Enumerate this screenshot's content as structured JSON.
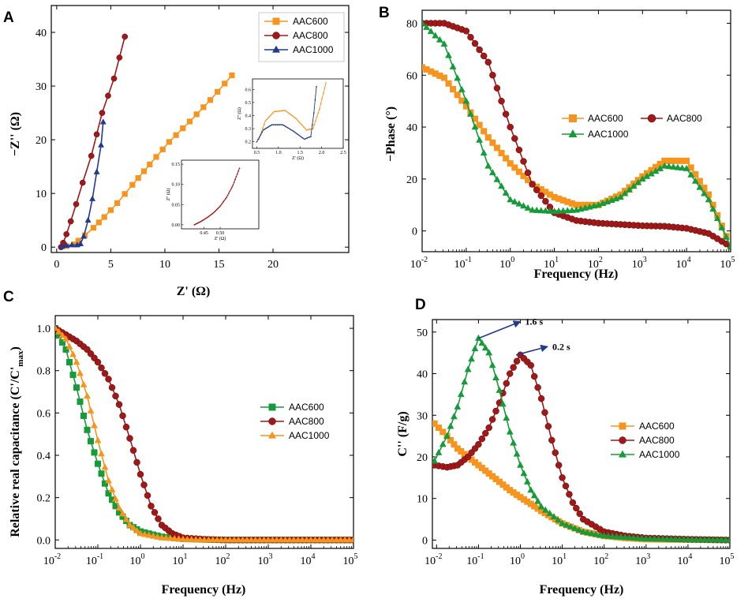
{
  "colors": {
    "AAC600_A": "#F7941D",
    "AAC800_A": "#A01818",
    "AAC1000_A": "#1F2F8F",
    "orange": "#F7941D",
    "darkred": "#A01818",
    "green": "#169B3A",
    "navy": "#1F3A8F"
  },
  "chart_data": [
    {
      "id": "A",
      "panel_letter": "A",
      "type": "line",
      "xlabel": "Z' (Ω)",
      "xlabel_main": "Z'",
      "xlabel_unit": "(Ω)",
      "ylabel": "−Z'' (Ω)",
      "ylabel_main": "−Z''",
      "ylabel_unit": "(Ω)",
      "xlim": [
        -0.5,
        27
      ],
      "ylim": [
        -1,
        45
      ],
      "xticks": [
        0,
        5,
        10,
        15,
        20
      ],
      "yticks": [
        0,
        10,
        20,
        30,
        40
      ],
      "legend_position": "top-right",
      "series": [
        {
          "name": "AAC600",
          "color_key": "orange",
          "marker": "square",
          "x": [
            0.9,
            1.6,
            2.0,
            2.6,
            3.4,
            4.4,
            5.6,
            7.0,
            8.6,
            10.4,
            12.3,
            14.2,
            16.2
          ],
          "y": [
            0.2,
            0.5,
            1.2,
            2.2,
            3.6,
            5.6,
            8.2,
            11.6,
            15.4,
            19.6,
            23.4,
            27.4,
            32.0
          ]
        },
        {
          "name": "AAC800",
          "color_key": "darkred",
          "marker": "circle",
          "x": [
            0.4,
            0.6,
            0.9,
            1.3,
            1.8,
            2.4,
            3.2,
            4.2,
            5.3,
            6.3
          ],
          "y": [
            0.0,
            0.8,
            2.4,
            4.8,
            8.0,
            12.0,
            17.0,
            25.0,
            31.4,
            39.2
          ]
        },
        {
          "name": "AAC1000",
          "color_key": "navy",
          "marker": "triangle",
          "x": [
            0.5,
            0.9,
            1.4,
            1.9,
            2.2,
            2.5,
            2.9,
            3.3,
            3.7,
            4.1,
            4.3
          ],
          "y": [
            0.1,
            0.3,
            0.4,
            0.4,
            0.6,
            2.0,
            5.0,
            9.0,
            14.0,
            19.0,
            23.3
          ]
        }
      ],
      "insets": [
        {
          "id": "inset1",
          "xlabel": "Z' (Ω)",
          "ylabel": "Z'' (Ω)",
          "xlim": [
            0.4,
            2.5
          ],
          "ylim": [
            0.15,
            0.68
          ],
          "xticks": [
            0.5,
            1.0,
            1.5,
            2.0,
            2.5
          ],
          "xtick_labels": [
            "0.5",
            "1.0",
            "1.5",
            "2.0",
            "2.5"
          ],
          "yticks": [
            0.2,
            0.3,
            0.4,
            0.5,
            0.6
          ],
          "ytick_labels": [
            "0.2",
            "0.3",
            "0.4",
            "0.5",
            "0.6"
          ],
          "series": [
            {
              "name": "AAC600",
              "color_key": "orange",
              "x": [
                0.55,
                0.7,
                0.9,
                1.15,
                1.4,
                1.65,
                1.8,
                1.95,
                2.1
              ],
              "y": [
                0.22,
                0.36,
                0.43,
                0.44,
                0.38,
                0.29,
                0.3,
                0.45,
                0.65
              ]
            },
            {
              "name": "AAC1000",
              "color_key": "navy",
              "x": [
                0.5,
                0.65,
                0.85,
                1.1,
                1.35,
                1.6,
                1.75,
                1.82,
                1.88
              ],
              "y": [
                0.2,
                0.29,
                0.33,
                0.33,
                0.28,
                0.22,
                0.24,
                0.42,
                0.62
              ]
            }
          ]
        },
        {
          "id": "inset2",
          "xlabel": "Z' (Ω)",
          "ylabel": "Z'' (Ω)",
          "xlim": [
            0.38,
            0.62
          ],
          "ylim": [
            -0.01,
            0.16
          ],
          "xticks": [
            0.45,
            0.5
          ],
          "xtick_labels": [
            "0.45",
            "0.50"
          ],
          "yticks": [
            0.0,
            0.05,
            0.1,
            0.15
          ],
          "ytick_labels": [
            "0.00",
            "0.05",
            "0.10",
            "0.15"
          ],
          "series": [
            {
              "name": "AAC800",
              "color_key": "darkred",
              "x": [
                0.42,
                0.44,
                0.46,
                0.48,
                0.5,
                0.52,
                0.54,
                0.56
              ],
              "y": [
                0.0,
                0.008,
                0.018,
                0.03,
                0.046,
                0.068,
                0.098,
                0.14
              ]
            }
          ]
        }
      ]
    },
    {
      "id": "B",
      "panel_letter": "B",
      "type": "line",
      "xlabel": "Frequency (Hz)",
      "ylabel": "−Phase (°)",
      "xscale": "log",
      "xlim": [
        -2,
        5
      ],
      "ylim": [
        -8,
        85
      ],
      "xtick_exponents": [
        "-2",
        "-1",
        "0",
        "1",
        "2",
        "3",
        "4",
        "5"
      ],
      "yticks": [
        0,
        20,
        40,
        60,
        80
      ],
      "legend_position": "center-right",
      "series": [
        {
          "name": "AAC600",
          "color_key": "orange",
          "marker": "square",
          "log_x": [
            -2,
            -1.5,
            -1,
            -0.5,
            0,
            0.5,
            1,
            1.5,
            2,
            2.5,
            3,
            3.5,
            4,
            4.5,
            5
          ],
          "y": [
            63,
            59,
            48,
            36,
            26,
            18,
            13,
            10,
            10,
            14,
            21,
            27,
            27,
            14,
            -6
          ]
        },
        {
          "name": "AAC800",
          "color_key": "darkred",
          "marker": "circle",
          "log_x": [
            -2,
            -1.5,
            -1,
            -0.5,
            0,
            0.5,
            1,
            1.5,
            2,
            2.5,
            3,
            3.5,
            4,
            4.5,
            5
          ],
          "y": [
            80,
            80,
            77,
            65,
            40,
            18,
            7,
            4,
            3,
            2.5,
            2,
            1.8,
            1,
            -1,
            -6
          ]
        },
        {
          "name": "AAC1000",
          "color_key": "green",
          "marker": "triangle",
          "log_x": [
            -2,
            -1.5,
            -1,
            -0.5,
            0,
            0.5,
            1,
            1.5,
            2,
            2.5,
            3,
            3.5,
            4,
            4.5,
            5
          ],
          "y": [
            80,
            72,
            50,
            25,
            12,
            8,
            7.5,
            8,
            10,
            13,
            20,
            25,
            24,
            12,
            -6
          ]
        }
      ]
    },
    {
      "id": "C",
      "panel_letter": "C",
      "type": "line",
      "xlabel": "Frequency (Hz)",
      "ylabel": "Relative real capacitance (C'/C'max)",
      "ylabel_main": "Relative real capacitance (C'/C'",
      "ylabel_sub": "max",
      "ylabel_close": ")",
      "xscale": "log",
      "xlim": [
        -2,
        5
      ],
      "ylim": [
        -0.04,
        1.06
      ],
      "xtick_exponents": [
        "-2",
        "-1",
        "0",
        "1",
        "2",
        "3",
        "4",
        "5"
      ],
      "yticks": [
        0.0,
        0.2,
        0.4,
        0.6,
        0.8,
        1.0
      ],
      "ytick_labels": [
        "0.0",
        "0.2",
        "0.4",
        "0.6",
        "0.8",
        "1.0"
      ],
      "legend_position": "center-right",
      "series": [
        {
          "name": "AAC600",
          "color_key": "green",
          "marker": "square",
          "log_x": [
            -2,
            -1.75,
            -1.5,
            -1.25,
            -1,
            -0.75,
            -0.5,
            -0.25,
            0,
            0.5,
            1,
            1.5,
            2,
            3,
            4,
            5
          ],
          "y": [
            1.0,
            0.9,
            0.72,
            0.52,
            0.36,
            0.22,
            0.13,
            0.07,
            0.04,
            0.015,
            0.005,
            0.002,
            0.0,
            0.0,
            0.0,
            0.0
          ]
        },
        {
          "name": "AAC800",
          "color_key": "darkred",
          "marker": "circle",
          "log_x": [
            -2,
            -1.75,
            -1.5,
            -1.25,
            -1,
            -0.75,
            -0.5,
            -0.25,
            0,
            0.25,
            0.5,
            0.75,
            1,
            1.5,
            2,
            3,
            4,
            5
          ],
          "y": [
            1.0,
            0.97,
            0.94,
            0.9,
            0.84,
            0.76,
            0.64,
            0.48,
            0.31,
            0.16,
            0.07,
            0.03,
            0.01,
            0.003,
            0.0,
            0.0,
            0.0,
            0.0
          ]
        },
        {
          "name": "AAC1000",
          "color_key": "orange",
          "marker": "triangle",
          "log_x": [
            -2,
            -1.75,
            -1.5,
            -1.25,
            -1,
            -0.75,
            -0.5,
            -0.25,
            0,
            0.5,
            1,
            1.5,
            2,
            3,
            4,
            5
          ],
          "y": [
            1.0,
            0.95,
            0.84,
            0.68,
            0.47,
            0.28,
            0.15,
            0.07,
            0.03,
            0.01,
            0.003,
            0.0,
            0.0,
            0.0,
            0.0,
            0.0
          ]
        }
      ]
    },
    {
      "id": "D",
      "panel_letter": "D",
      "type": "line",
      "xlabel": "Frequency (Hz)",
      "ylabel": "C'' (F/g)",
      "xscale": "log",
      "xlim": [
        -2.1,
        5
      ],
      "ylim": [
        -2,
        53
      ],
      "xtick_exponents": [
        "-2",
        "-1",
        "0",
        "1",
        "2",
        "3",
        "4",
        "5"
      ],
      "yticks": [
        0,
        10,
        20,
        30,
        40,
        50
      ],
      "legend_position": "center-right",
      "annotations": [
        {
          "text": "1.6 s",
          "log_x": -1.0,
          "y": 48.5,
          "dx": 1.0,
          "dy": 4
        },
        {
          "text": "0.2 s",
          "log_x": -0.1,
          "y": 44.5,
          "dx": 0.75,
          "dy": 2
        }
      ],
      "series": [
        {
          "name": "AAC600",
          "color_key": "orange",
          "marker": "square",
          "log_x": [
            -2.05,
            -1.75,
            -1.5,
            -1.25,
            -1,
            -0.75,
            -0.5,
            -0.25,
            0,
            0.25,
            0.5,
            0.75,
            1,
            1.5,
            2,
            2.5,
            3,
            4,
            5
          ],
          "y": [
            28,
            25,
            22,
            20,
            18,
            16,
            14,
            12,
            10.3,
            8.7,
            7,
            5.5,
            4,
            2,
            1,
            0.5,
            0.2,
            0.1,
            0.0
          ]
        },
        {
          "name": "AAC800",
          "color_key": "darkred",
          "marker": "circle",
          "log_x": [
            -2.05,
            -1.75,
            -1.5,
            -1.25,
            -1,
            -0.75,
            -0.5,
            -0.25,
            0,
            0.25,
            0.5,
            0.75,
            1,
            1.25,
            1.5,
            2,
            2.5,
            3,
            4,
            5
          ],
          "y": [
            18,
            17.5,
            18,
            20,
            23,
            27,
            33,
            40,
            44.5,
            42,
            34,
            24,
            15,
            9,
            5,
            2,
            1,
            0.5,
            0.2,
            0.0
          ]
        },
        {
          "name": "AAC1000",
          "color_key": "green",
          "marker": "triangle",
          "log_x": [
            -2.05,
            -1.75,
            -1.5,
            -1.25,
            -1,
            -0.75,
            -0.5,
            -0.25,
            0,
            0.25,
            0.5,
            1,
            1.5,
            2,
            3,
            4,
            5
          ],
          "y": [
            19,
            25,
            32,
            41,
            48.5,
            45,
            36,
            26,
            18,
            12,
            8,
            4,
            2,
            1,
            0.3,
            0.1,
            0.0
          ]
        }
      ]
    }
  ]
}
